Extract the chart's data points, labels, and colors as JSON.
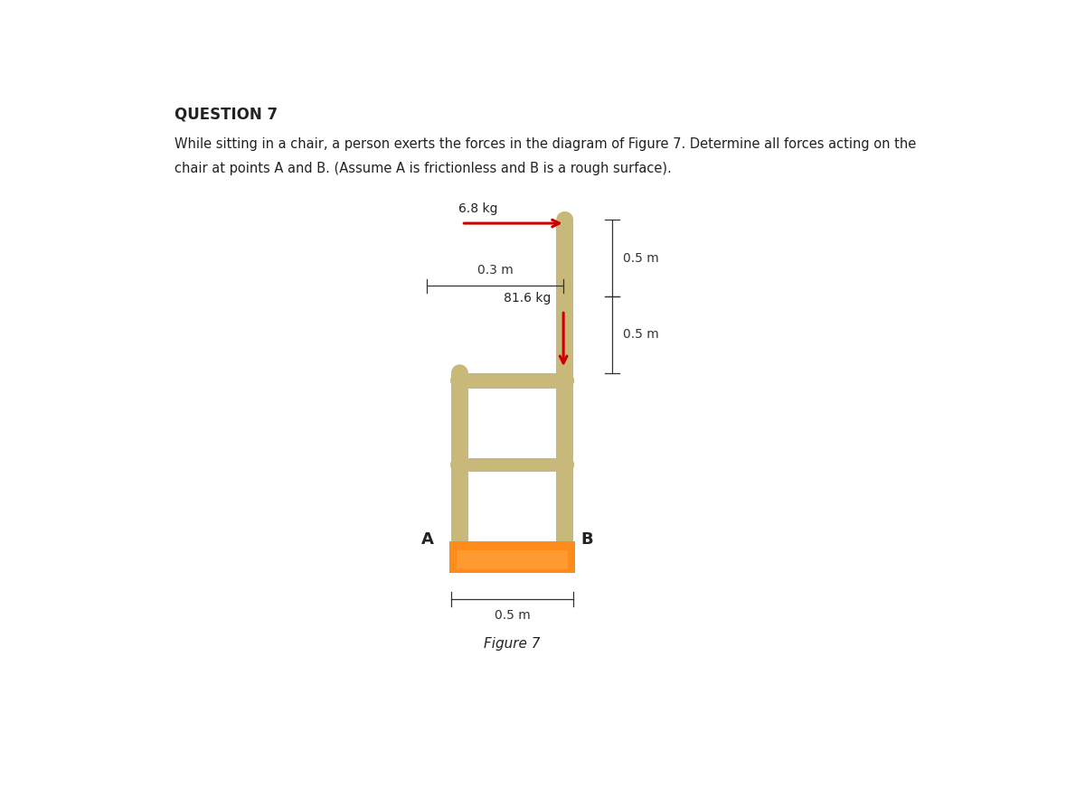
{
  "title": "QUESTION 7",
  "description_line1": "While sitting in a chair, a person exerts the forces in the diagram of Figure 7. Determine all forces acting on the",
  "description_line2": "chair at points A and B. (Assume A is frictionless and B is a rough surface).",
  "figure_caption": "Figure 7",
  "label_6_8kg": "6.8 kg",
  "label_81_6kg": "81.6 kg",
  "label_0_3m": "0.3 m",
  "label_0_5m_right_top": "0.5 m",
  "label_0_5m_right_bottom": "0.5 m",
  "label_0_5m_bottom": "0.5 m",
  "label_A": "A",
  "label_B": "B",
  "chair_wood_color": "#C8B87A",
  "floor_color": "#FF8C1A",
  "background_color": "#FFFFFF",
  "arrow_color_red": "#CC0000",
  "text_color": "#222222",
  "dim_line_color": "#333333"
}
